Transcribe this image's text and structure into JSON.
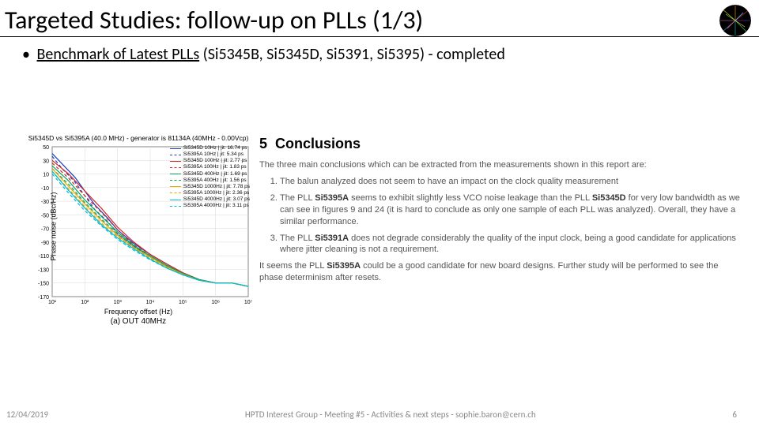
{
  "title": "Targeted Studies: follow-up on PLLs (1/3)",
  "bullet": {
    "link_text": "Benchmark of Latest PLLs",
    "rest": " (Si5345B, Si5345D, Si5391, Si5395) - completed"
  },
  "chart": {
    "title": "Si5345D vs Si5395A (40.0 MHz) - generator is 81134A (40MHz - 0.00Vcp)",
    "caption": "(a) OUT 40MHz",
    "ylabel": "Phase noise (dBc/Hz)",
    "xlabel": "Frequency offset (Hz)",
    "ylim": [
      -170,
      50
    ],
    "ytick_step": 20,
    "xlim_log": [
      1,
      7
    ],
    "x_tick_labels": [
      "10¹",
      "10²",
      "10³",
      "10⁴",
      "10⁵",
      "10⁶",
      "10⁷"
    ],
    "line_width": 1.2,
    "grid_color": "#d9d9d9",
    "background_color": "#ffffff",
    "series": [
      {
        "label": "Si5345D 10Hz | jit: 16.74 ps",
        "color": "#1f3fbf",
        "dash": "solid",
        "pts": [
          [
            1,
            40
          ],
          [
            1.3,
            25
          ],
          [
            1.7,
            5
          ],
          [
            2,
            -15
          ],
          [
            2.3,
            -35
          ],
          [
            2.7,
            -55
          ],
          [
            3,
            -72
          ],
          [
            3.5,
            -92
          ],
          [
            4,
            -108
          ],
          [
            4.5,
            -122
          ],
          [
            5,
            -135
          ],
          [
            5.5,
            -145
          ],
          [
            6,
            -150
          ],
          [
            6.5,
            -150
          ],
          [
            7,
            -155
          ]
        ]
      },
      {
        "label": "Si5395A 10Hz | jit: 5.34 ps",
        "color": "#1f3fbf",
        "dash": "dashed",
        "pts": [
          [
            1,
            36
          ],
          [
            1.3,
            18
          ],
          [
            1.7,
            -2
          ],
          [
            2,
            -22
          ],
          [
            2.3,
            -42
          ],
          [
            2.7,
            -60
          ],
          [
            3,
            -78
          ],
          [
            3.5,
            -96
          ],
          [
            4,
            -112
          ],
          [
            4.5,
            -126
          ],
          [
            5,
            -138
          ],
          [
            5.5,
            -146
          ],
          [
            6,
            -150
          ],
          [
            6.5,
            -150
          ],
          [
            7,
            -155
          ]
        ]
      },
      {
        "label": "Si5345D 100Hz | jit: 2.77 ps",
        "color": "#d62728",
        "dash": "solid",
        "pts": [
          [
            1,
            30
          ],
          [
            1.5,
            10
          ],
          [
            2,
            -15
          ],
          [
            2.5,
            -40
          ],
          [
            3,
            -68
          ],
          [
            3.5,
            -90
          ],
          [
            4,
            -108
          ],
          [
            4.5,
            -122
          ],
          [
            5,
            -135
          ],
          [
            5.5,
            -145
          ],
          [
            6,
            -150
          ],
          [
            6.5,
            -150
          ],
          [
            7,
            -155
          ]
        ]
      },
      {
        "label": "Si5395A 100Hz | jit: 1.83 ps",
        "color": "#d62728",
        "dash": "dashed",
        "pts": [
          [
            1,
            26
          ],
          [
            1.5,
            4
          ],
          [
            2,
            -22
          ],
          [
            2.5,
            -46
          ],
          [
            3,
            -72
          ],
          [
            3.5,
            -94
          ],
          [
            4,
            -110
          ],
          [
            4.5,
            -124
          ],
          [
            5,
            -136
          ],
          [
            5.5,
            -145
          ],
          [
            6,
            -150
          ],
          [
            6.5,
            -150
          ],
          [
            7,
            -155
          ]
        ]
      },
      {
        "label": "Si5345D 400Hz | jit: 1.69 ps",
        "color": "#0aa35a",
        "dash": "solid",
        "pts": [
          [
            1,
            22
          ],
          [
            1.5,
            0
          ],
          [
            2,
            -28
          ],
          [
            2.5,
            -52
          ],
          [
            3,
            -75
          ],
          [
            3.5,
            -95
          ],
          [
            4,
            -110
          ],
          [
            4.5,
            -124
          ],
          [
            5,
            -136
          ],
          [
            5.5,
            -145
          ],
          [
            6,
            -150
          ],
          [
            6.5,
            -150
          ],
          [
            7,
            -155
          ]
        ]
      },
      {
        "label": "Si5395A 400Hz | jit: 1.56 ps",
        "color": "#0aa35a",
        "dash": "dashed",
        "pts": [
          [
            1,
            18
          ],
          [
            1.5,
            -5
          ],
          [
            2,
            -32
          ],
          [
            2.5,
            -56
          ],
          [
            3,
            -78
          ],
          [
            3.5,
            -96
          ],
          [
            4,
            -112
          ],
          [
            4.5,
            -125
          ],
          [
            5,
            -137
          ],
          [
            5.5,
            -146
          ],
          [
            6,
            -150
          ],
          [
            6.5,
            -150
          ],
          [
            7,
            -155
          ]
        ]
      },
      {
        "label": "Si5345D 1000Hz | jit: 7.78 ps",
        "color": "#e6a400",
        "dash": "solid",
        "pts": [
          [
            1,
            18
          ],
          [
            1.5,
            -8
          ],
          [
            2,
            -34
          ],
          [
            2.5,
            -58
          ],
          [
            3,
            -80
          ],
          [
            3.5,
            -98
          ],
          [
            4,
            -112
          ],
          [
            4.5,
            -126
          ],
          [
            5,
            -137
          ],
          [
            5.5,
            -146
          ],
          [
            6,
            -150
          ],
          [
            6.5,
            -150
          ],
          [
            7,
            -155
          ]
        ]
      },
      {
        "label": "Si5395A 1000Hz | jit: 2.36 ps",
        "color": "#e6a400",
        "dash": "dashed",
        "pts": [
          [
            1,
            14
          ],
          [
            1.5,
            -12
          ],
          [
            2,
            -38
          ],
          [
            2.5,
            -62
          ],
          [
            3,
            -82
          ],
          [
            3.5,
            -99
          ],
          [
            4,
            -114
          ],
          [
            4.5,
            -127
          ],
          [
            5,
            -138
          ],
          [
            5.5,
            -146
          ],
          [
            6,
            -150
          ],
          [
            6.5,
            -150
          ],
          [
            7,
            -155
          ]
        ]
      },
      {
        "label": "Si5345D 4000Hz | jit: 3.07 ps",
        "color": "#00bcd4",
        "dash": "solid",
        "pts": [
          [
            1,
            14
          ],
          [
            1.5,
            -14
          ],
          [
            2,
            -40
          ],
          [
            2.5,
            -64
          ],
          [
            3,
            -84
          ],
          [
            3.5,
            -100
          ],
          [
            4,
            -115
          ],
          [
            4.5,
            -128
          ],
          [
            5,
            -138
          ],
          [
            5.5,
            -146
          ],
          [
            6,
            -150
          ],
          [
            6.5,
            -150
          ],
          [
            7,
            -155
          ]
        ]
      },
      {
        "label": "Si5395A 4000Hz | jit: 3.11 ps",
        "color": "#00bcd4",
        "dash": "dashed",
        "pts": [
          [
            1,
            10
          ],
          [
            1.5,
            -18
          ],
          [
            2,
            -44
          ],
          [
            2.5,
            -66
          ],
          [
            3,
            -86
          ],
          [
            3.5,
            -102
          ],
          [
            4,
            -116
          ],
          [
            4.5,
            -128
          ],
          [
            5,
            -138
          ],
          [
            5.5,
            -146
          ],
          [
            6,
            -150
          ],
          [
            6.5,
            -150
          ],
          [
            7,
            -155
          ]
        ]
      }
    ]
  },
  "conclusions": {
    "heading_num": "5",
    "heading": "Conclusions",
    "intro": "The three main conclusions which can be extracted from the measurements shown in this report are:",
    "items": [
      "The balun analyzed does not seem to have an impact on the clock quality measurement",
      "The PLL <b>Si5395A</b> seems to exhibit slightly less VCO noise leakage than the PLL <b>Si5345D</b> for very low bandwidth as we can see in figures 9 and 24 (it is hard to conclude as only one sample of each PLL was analyzed). Overall, they have a similar performance.",
      "The PLL <b>Si5391A</b> does not degrade considerably the quality of the input clock, being a good candidate for applications where jitter cleaning is not a requirement."
    ],
    "outro": "It seems the PLL <b>Si5395A</b> could be a good candidate for new board designs. Further study will be performed to see the phase determinism after resets."
  },
  "footer": {
    "date": "12/04/2019",
    "center": "HPTD Interest Group - Meeting #5 - Activities & next steps - sophie.baron@cern.ch",
    "page": "6"
  }
}
